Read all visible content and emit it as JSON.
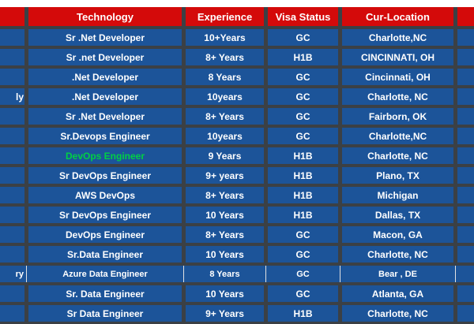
{
  "colors": {
    "header_bg": "#D40A0A",
    "row_bg": "#1C5499",
    "grid": "#3B4045",
    "text": "#FFFFFF",
    "highlight_green": "#00D044",
    "special_line": "#E2E2E2"
  },
  "table": {
    "columns": [
      {
        "key": "left_partial",
        "label": ""
      },
      {
        "key": "technology",
        "label": "Technology"
      },
      {
        "key": "experience",
        "label": "Experience"
      },
      {
        "key": "visa",
        "label": "Visa Status"
      },
      {
        "key": "location",
        "label": "Cur-Location"
      },
      {
        "key": "right_partial",
        "label": ""
      }
    ],
    "rows": [
      {
        "left": "",
        "technology": "Sr .Net Developer",
        "experience": "10+Years",
        "visa": "GC",
        "location": "Charlotte,NC",
        "right": "",
        "style": "normal"
      },
      {
        "left": "",
        "technology": "Sr .net Developer",
        "experience": "8+ Years",
        "visa": "H1B",
        "location": "CINCINNATI, OH",
        "right": "",
        "style": "normal"
      },
      {
        "left": "",
        "technology": ".Net Developer",
        "experience": "8 Years",
        "visa": "GC",
        "location": "Cincinnati, OH",
        "right": "",
        "style": "normal"
      },
      {
        "left": "ly",
        "technology": ".Net Developer",
        "experience": "10years",
        "visa": "GC",
        "location": "Charlotte, NC",
        "right": "",
        "style": "normal"
      },
      {
        "left": "",
        "technology": "Sr .Net Developer",
        "experience": "8+ Years",
        "visa": "GC",
        "location": "Fairborn, OK",
        "right": "",
        "style": "normal"
      },
      {
        "left": "",
        "technology": "Sr.Devops Engineer",
        "experience": "10years",
        "visa": "GC",
        "location": "Charlotte,NC",
        "right": "",
        "style": "normal"
      },
      {
        "left": "",
        "technology": "DevOps Engineer",
        "experience": "9 Years",
        "visa": "H1B",
        "location": "Charlotte, NC",
        "right": "",
        "style": "green-tech"
      },
      {
        "left": "",
        "technology": "Sr DevOps Engineer",
        "experience": "9+ years",
        "visa": "H1B",
        "location": "Plano, TX",
        "right": "",
        "style": "normal"
      },
      {
        "left": "",
        "technology": "AWS DevOps",
        "experience": "8+ Years",
        "visa": "H1B",
        "location": "Michigan",
        "right": "",
        "style": "normal"
      },
      {
        "left": "",
        "technology": "Sr DevOps Engineer",
        "experience": "10 Years",
        "visa": "H1B",
        "location": "Dallas, TX",
        "right": "",
        "style": "normal"
      },
      {
        "left": "",
        "technology": "DevOps Engineer",
        "experience": "8+ Years",
        "visa": "GC",
        "location": "Macon, GA",
        "right": "",
        "style": "normal"
      },
      {
        "left": "",
        "technology": "Sr.Data Engineer",
        "experience": "10 Years",
        "visa": "GC",
        "location": "Charlotte, NC",
        "right": "",
        "style": "normal"
      },
      {
        "left": "ry",
        "technology": "Azure Data Engineer",
        "experience": "8 Years",
        "visa": "GC",
        "location": "Bear , DE",
        "right": "",
        "style": "light-borders"
      },
      {
        "left": "",
        "technology": "Sr. Data Engineer",
        "experience": "10 Years",
        "visa": "GC",
        "location": "Atlanta, GA",
        "right": "",
        "style": "normal"
      },
      {
        "left": "",
        "technology": "Sr Data Engineer",
        "experience": "9+ Years",
        "visa": "H1B",
        "location": "Charlotte, NC",
        "right": "",
        "style": "normal"
      }
    ]
  }
}
